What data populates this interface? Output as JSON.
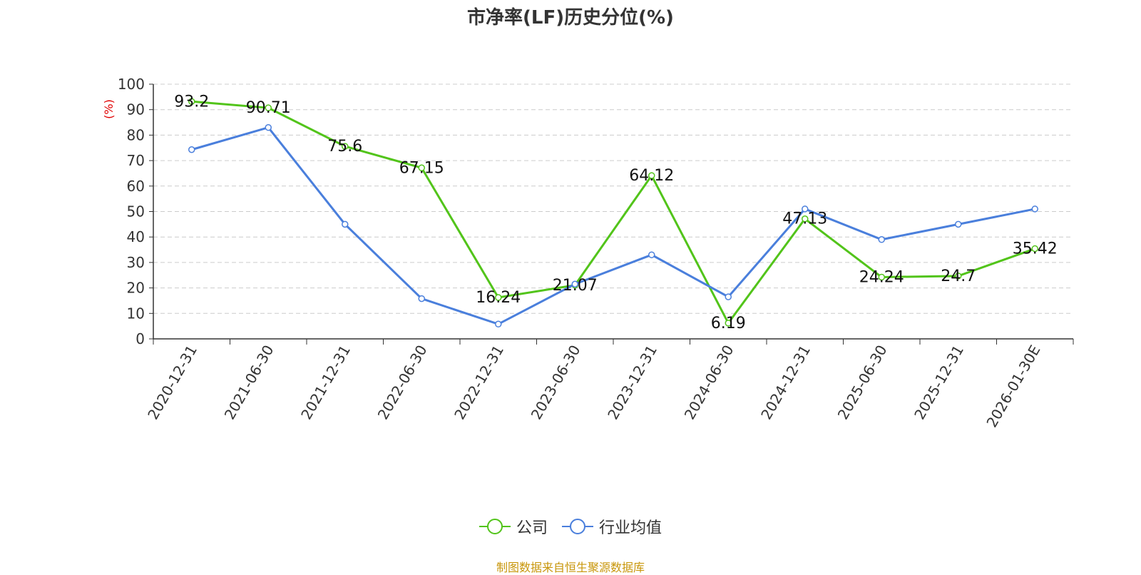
{
  "title": "市净率(LF)历史分位(%)",
  "source": "制图数据来自恒生聚源数据库",
  "colors": {
    "source_text": "#c8960a",
    "ylabel": "#e00000",
    "grid": "#cccccc",
    "axis": "#333333"
  },
  "chart_data": {
    "type": "line",
    "title": "市净率(LF)历史分位(%)",
    "xlabel": "",
    "ylabel": "(%)",
    "ylim": [
      0,
      100
    ],
    "yticks": [
      0,
      10,
      20,
      30,
      40,
      50,
      60,
      70,
      80,
      90,
      100
    ],
    "grid": true,
    "legend_position": "bottom",
    "categories": [
      "2020-12-31",
      "2021-06-30",
      "2021-12-31",
      "2022-06-30",
      "2022-12-31",
      "2023-06-30",
      "2023-12-31",
      "2024-06-30",
      "2024-12-31",
      "2025-06-30",
      "2025-12-31",
      "2026-01-30E"
    ],
    "series": [
      {
        "name": "公司",
        "color": "#52c41a",
        "show_labels": true,
        "values": [
          93.2,
          90.71,
          75.6,
          67.15,
          16.24,
          21.07,
          64.12,
          6.19,
          47.13,
          24.24,
          24.7,
          35.42
        ]
      },
      {
        "name": "行业均值",
        "color": "#4a7fdc",
        "show_labels": false,
        "values": [
          74.3,
          83.0,
          45.0,
          15.8,
          5.8,
          21.5,
          33.0,
          16.5,
          51.0,
          39.0,
          45.0,
          51.0
        ]
      }
    ]
  }
}
